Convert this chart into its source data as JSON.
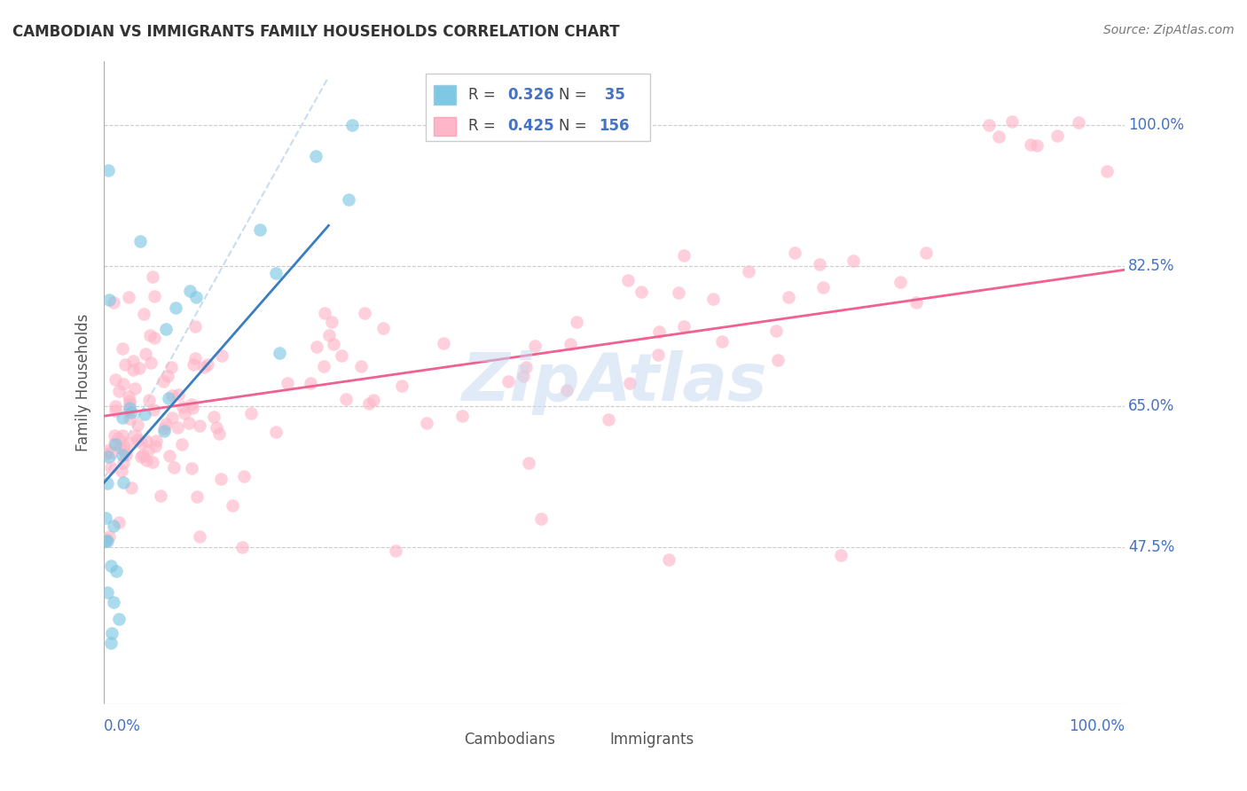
{
  "title": "CAMBODIAN VS IMMIGRANTS FAMILY HOUSEHOLDS CORRELATION CHART",
  "source": "Source: ZipAtlas.com",
  "ylabel": "Family Households",
  "ytick_vals": [
    0.475,
    0.65,
    0.825,
    1.0
  ],
  "ytick_labels": [
    "47.5%",
    "65.0%",
    "82.5%",
    "100.0%"
  ],
  "xlim": [
    0.0,
    1.0
  ],
  "ylim": [
    0.28,
    1.08
  ],
  "color_cambodian": "#7ec8e3",
  "color_immigrant": "#ffb6c8",
  "color_cambodian_line": "#3a7ebf",
  "color_immigrant_line": "#f06090",
  "color_dashed_line": "#c8ddf0",
  "color_axis_labels": "#4472C4",
  "color_title": "#333333",
  "color_grid": "#cccccc",
  "watermark": "ZipAtlas"
}
